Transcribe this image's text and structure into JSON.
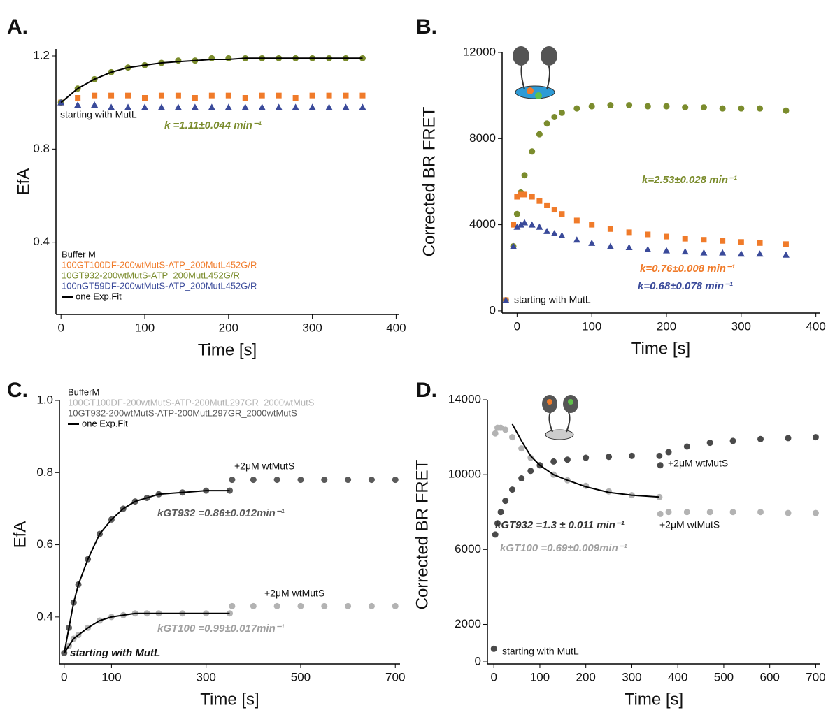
{
  "chart_data": [
    {
      "type": "scatter",
      "label": "A.",
      "ylabel": "EfA",
      "xlabel": "Time [s]",
      "xlim": [
        -6,
        403
      ],
      "xticks": [
        0,
        100,
        200,
        300,
        400
      ],
      "ylim": [
        0.09,
        1.23
      ],
      "yticks": [
        0.4,
        0.8,
        1.2
      ],
      "x": [
        0,
        20,
        40,
        60,
        80,
        100,
        120,
        140,
        160,
        180,
        200,
        220,
        240,
        260,
        280,
        300,
        320,
        340,
        360
      ],
      "legend_title": "Buffer M",
      "series": [
        {
          "name": "100GT100DF-200wtMutS-ATP_200MutL452G/R",
          "color": "#f07b2a",
          "marker": "square",
          "values": [
            1.0,
            1.02,
            1.03,
            1.03,
            1.03,
            1.02,
            1.03,
            1.03,
            1.02,
            1.03,
            1.03,
            1.02,
            1.03,
            1.03,
            1.02,
            1.03,
            1.03,
            1.03,
            1.03
          ]
        },
        {
          "name": "10GT932-200wtMutS-ATP_200MutL452G/R",
          "color": "#7b8c2d",
          "marker": "circle",
          "values": [
            1.0,
            1.06,
            1.1,
            1.13,
            1.15,
            1.16,
            1.17,
            1.18,
            1.18,
            1.19,
            1.19,
            1.19,
            1.19,
            1.19,
            1.19,
            1.19,
            1.19,
            1.19,
            1.19
          ]
        },
        {
          "name": "100nGT59DF-200wtMutS-ATP_200MutL452G/R",
          "color": "#3a4a9a",
          "marker": "triangle",
          "values": [
            1.0,
            0.99,
            0.99,
            0.98,
            0.98,
            0.98,
            0.98,
            0.98,
            0.98,
            0.98,
            0.98,
            0.98,
            0.98,
            0.98,
            0.98,
            0.98,
            0.98,
            0.98,
            0.98
          ]
        },
        {
          "name": "one Exp.Fit",
          "color": "#000000",
          "values": [
            1.0,
            1.06,
            1.1,
            1.13,
            1.15,
            1.16,
            1.17,
            1.175,
            1.18,
            1.185,
            1.185,
            1.19,
            1.19,
            1.19,
            1.19,
            1.19,
            1.19,
            1.19,
            1.19
          ]
        }
      ],
      "annotations": [
        {
          "text": "starting with MutL",
          "color": "#111111"
        },
        {
          "text": "k =1.11±0.044 min⁻¹",
          "color": "#7b8c2d"
        }
      ]
    },
    {
      "type": "scatter",
      "label": "B.",
      "ylabel": "Corrected BR FRET",
      "xlabel": "Time [s]",
      "xlim": [
        -20,
        405
      ],
      "xticks": [
        0,
        100,
        200,
        300,
        400
      ],
      "ylim": [
        -100,
        12000
      ],
      "yticks": [
        0,
        4000,
        8000,
        12000
      ],
      "x": [
        -15,
        -5,
        0,
        5,
        10,
        20,
        30,
        40,
        50,
        60,
        80,
        100,
        125,
        150,
        175,
        200,
        225,
        250,
        275,
        300,
        325,
        360
      ],
      "series": [
        {
          "color": "#7b8c2d",
          "marker": "circle",
          "values": [
            500,
            3000,
            4500,
            5500,
            6300,
            7400,
            8200,
            8700,
            9000,
            9200,
            9400,
            9500,
            9550,
            9550,
            9500,
            9500,
            9450,
            9450,
            9400,
            9400,
            9400,
            9300
          ]
        },
        {
          "color": "#f07b2a",
          "marker": "square",
          "values": [
            500,
            4000,
            5300,
            5400,
            5400,
            5300,
            5100,
            4900,
            4700,
            4500,
            4200,
            4000,
            3800,
            3650,
            3550,
            3450,
            3350,
            3300,
            3250,
            3200,
            3150,
            3100
          ]
        },
        {
          "color": "#3a4a9a",
          "marker": "triangle",
          "values": [
            500,
            3000,
            3900,
            4000,
            4100,
            4000,
            3900,
            3700,
            3600,
            3500,
            3300,
            3150,
            3000,
            2950,
            2850,
            2800,
            2750,
            2700,
            2700,
            2650,
            2650,
            2600
          ]
        }
      ],
      "annotations": [
        {
          "text": "k=2.53±0.028 min⁻¹",
          "color": "#7b8c2d"
        },
        {
          "text": "k=0.76±0.008 min⁻¹",
          "color": "#f07b2a"
        },
        {
          "text": "k=0.68±0.078 min⁻¹",
          "color": "#3a4a9a"
        },
        {
          "text": "starting with MutL",
          "color": "#111111"
        }
      ]
    },
    {
      "type": "scatter",
      "label": "C.",
      "ylabel": "EfA",
      "xlabel": "Time [s]",
      "xlim": [
        -10,
        710
      ],
      "xticks": [
        0,
        100,
        300,
        500,
        700
      ],
      "ylim": [
        0.27,
        1.0
      ],
      "yticks": [
        0.4,
        0.6,
        0.8,
        {
          "value": 1.0,
          "label": "1.0"
        }
      ],
      "x": [
        0,
        10,
        20,
        30,
        50,
        75,
        100,
        125,
        150,
        175,
        200,
        250,
        300,
        350,
        355,
        400,
        450,
        500,
        550,
        600,
        650,
        700
      ],
      "legend_title": "BufferM",
      "series": [
        {
          "name": "100GT100DF-200wtMutS-ATP-200MutL297GR_2000wtMutS",
          "color": "#b3b3b3",
          "marker": "circle",
          "values": [
            0.3,
            0.32,
            0.34,
            0.35,
            0.37,
            0.39,
            0.4,
            0.405,
            0.41,
            0.41,
            0.41,
            0.41,
            0.41,
            0.41,
            0.43,
            0.43,
            0.43,
            0.43,
            0.43,
            0.43,
            0.43,
            0.43
          ]
        },
        {
          "name": "10GT932-200wtMutS-ATP-200MutL297GR_2000wtMutS",
          "color": "#5a5a5a",
          "marker": "circle",
          "values": [
            0.3,
            0.37,
            0.44,
            0.49,
            0.56,
            0.63,
            0.67,
            0.7,
            0.72,
            0.73,
            0.74,
            0.745,
            0.75,
            0.75,
            0.78,
            0.78,
            0.78,
            0.78,
            0.78,
            0.78,
            0.78,
            0.78
          ]
        },
        {
          "name": "one Exp.Fit",
          "color": "#000000",
          "values": [
            0.3,
            0.37,
            0.44,
            0.49,
            0.56,
            0.63,
            0.67,
            0.7,
            0.72,
            0.73,
            0.74,
            0.745,
            0.75,
            0.75,
            null,
            null,
            null,
            null,
            null,
            null,
            null,
            null
          ]
        },
        {
          "color": "#000000",
          "values": [
            0.3,
            0.32,
            0.34,
            0.35,
            0.37,
            0.39,
            0.4,
            0.405,
            0.41,
            0.41,
            0.41,
            0.41,
            0.41,
            0.41,
            null,
            null,
            null,
            null,
            null,
            null,
            null,
            null
          ]
        }
      ],
      "annotations": [
        {
          "text": "+2μM wtMutS",
          "color": "#111111"
        },
        {
          "text": "kGT932 =0.86±0.012min⁻¹",
          "color": "#5a5a5a"
        },
        {
          "text": "+2μM wtMutS",
          "color": "#111111"
        },
        {
          "text": "kGT100 =0.99±0.017min⁻¹",
          "color": "#a0a0a0"
        },
        {
          "text": "starting with MutL",
          "color": "#111111"
        }
      ]
    },
    {
      "type": "scatter",
      "label": "D.",
      "ylabel": "Corrected BR FRET",
      "xlabel": "Time [s]",
      "xlim": [
        -14,
        710
      ],
      "xticks": [
        0,
        100,
        200,
        300,
        400,
        500,
        600,
        700
      ],
      "ylim": [
        -110,
        14000
      ],
      "yticks": [
        0,
        2000,
        6000,
        10000,
        14000
      ],
      "x": [
        0,
        3,
        8,
        15,
        25,
        40,
        60,
        80,
        100,
        130,
        160,
        200,
        250,
        300,
        360,
        362,
        380,
        420,
        470,
        520,
        580,
        640,
        700
      ],
      "series": [
        {
          "color": "#b3b3b3",
          "marker": "circle",
          "values": [
            700,
            12200,
            12500,
            12500,
            12400,
            12000,
            11400,
            10900,
            10500,
            10000,
            9700,
            9400,
            9100,
            8900,
            8800,
            7900,
            8000,
            8000,
            8000,
            8000,
            8000,
            7950,
            7950
          ]
        },
        {
          "color": "#4a4a4a",
          "marker": "circle",
          "values": [
            700,
            6800,
            7400,
            8000,
            8600,
            9200,
            9800,
            10200,
            10500,
            10700,
            10800,
            10900,
            10950,
            11000,
            11000,
            10500,
            11200,
            11500,
            11700,
            11800,
            11900,
            11950,
            12000
          ]
        },
        {
          "color": "#000000",
          "values": [
            null,
            null,
            null,
            null,
            null,
            12700,
            11800,
            11000,
            10500,
            10000,
            9700,
            9350,
            9050,
            8900,
            8800,
            null,
            null,
            null,
            null,
            null,
            null,
            null,
            null
          ]
        }
      ],
      "annotations": [
        {
          "text": "+2μM wtMutS",
          "color": "#111111"
        },
        {
          "text": "kGT932 =1.3 ± 0.011 min⁻¹",
          "color": "#333333"
        },
        {
          "text": "+2μM wtMutS",
          "color": "#111111"
        },
        {
          "text": "kGT100 =0.69±0.009min⁻¹",
          "color": "#a0a0a0"
        },
        {
          "text": "starting with MutL",
          "color": "#111111"
        }
      ]
    }
  ]
}
